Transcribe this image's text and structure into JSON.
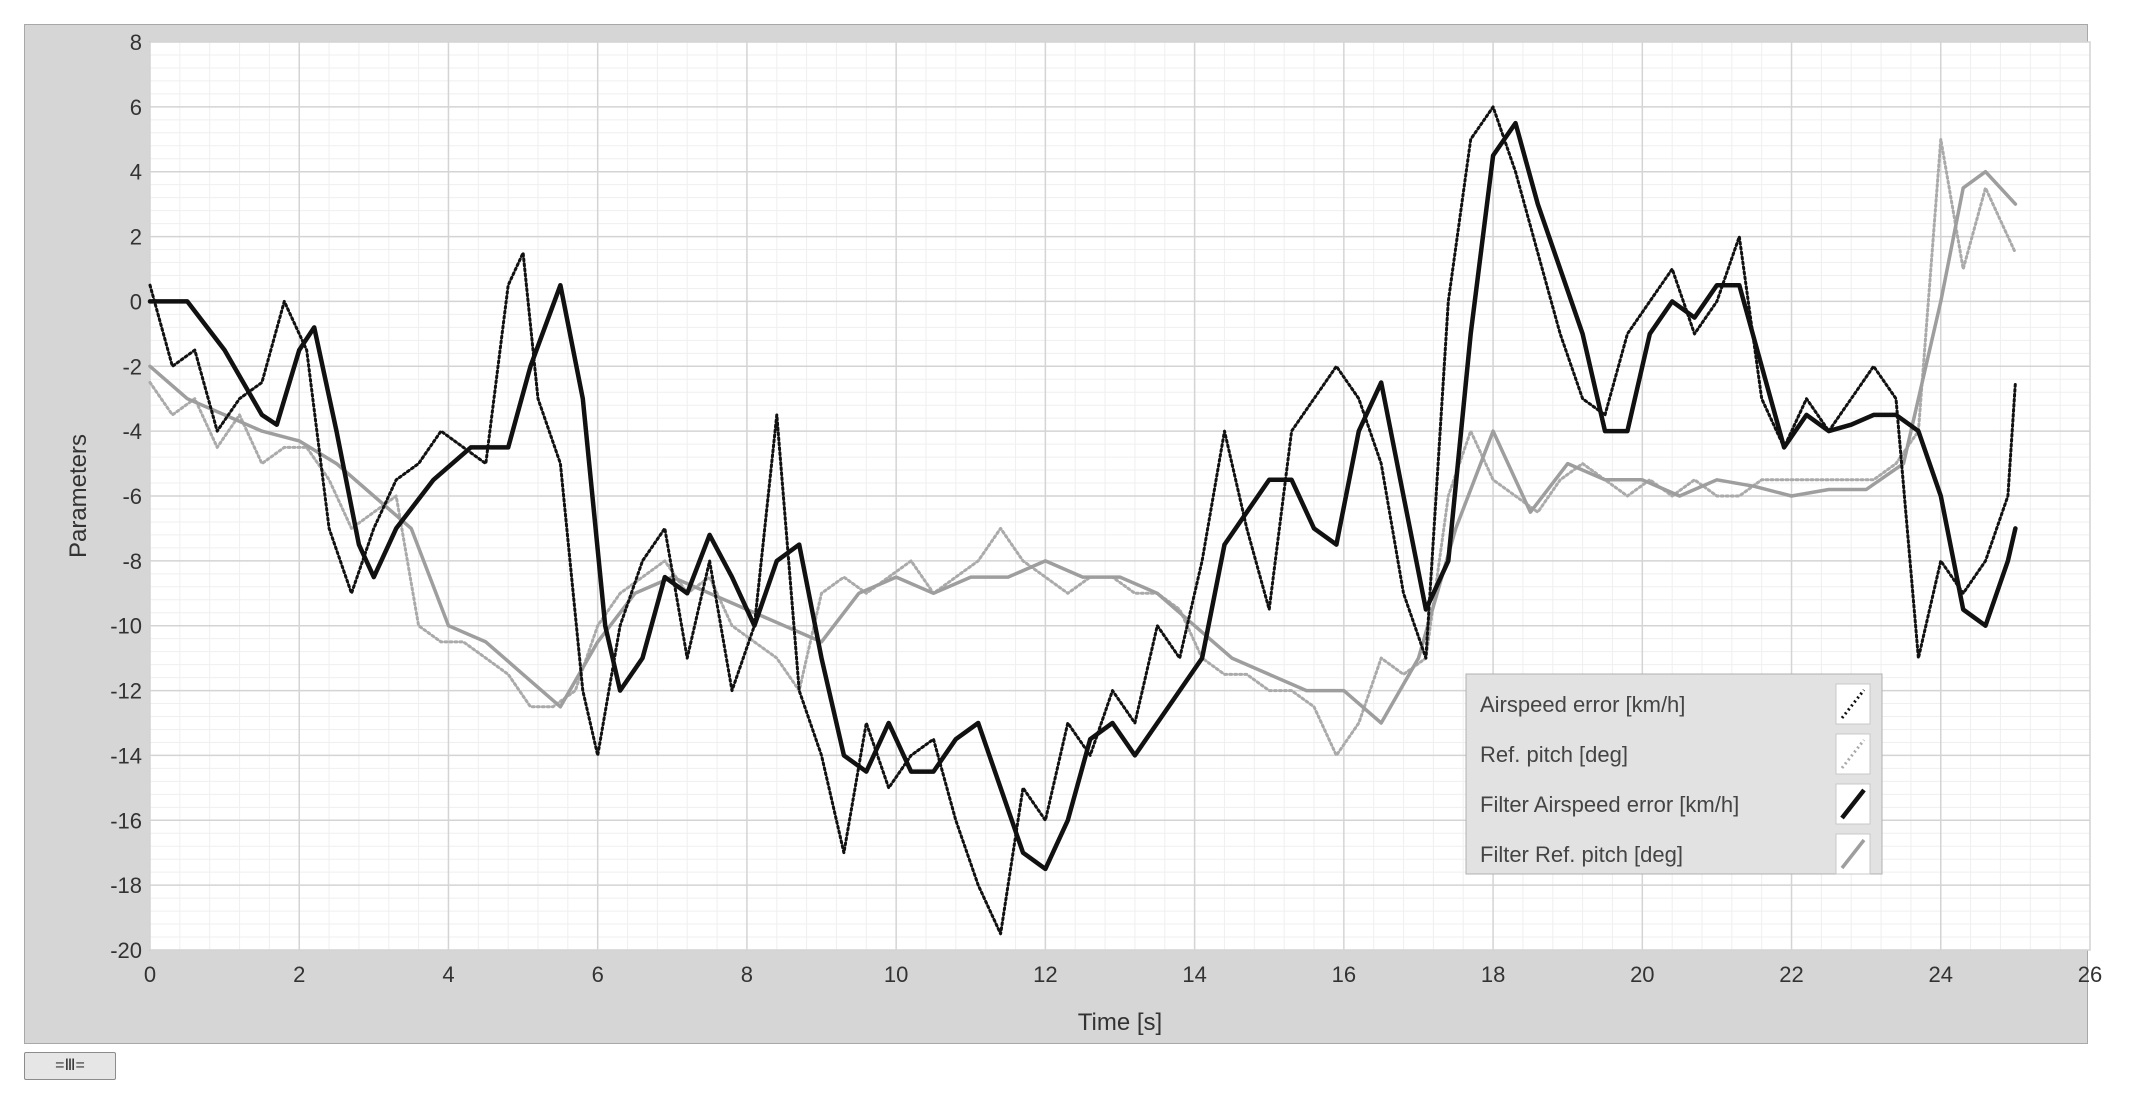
{
  "chart_data": {
    "type": "line",
    "xlabel": "Time [s]",
    "ylabel": "Parameters",
    "xlim": [
      0,
      26
    ],
    "ylim": [
      -20,
      8
    ],
    "xticks": [
      0,
      2,
      4,
      6,
      8,
      10,
      12,
      14,
      16,
      18,
      20,
      22,
      24,
      26
    ],
    "yticks": [
      8,
      6,
      4,
      2,
      0,
      -2,
      -4,
      -6,
      -8,
      -10,
      -12,
      -14,
      -16,
      -18,
      -20
    ],
    "grid": true,
    "legend": "bottom-right",
    "series": [
      {
        "name": "Airspeed error [km/h]",
        "style": "dotted",
        "color": "#111111",
        "x": [
          0,
          0.3,
          0.6,
          0.9,
          1.2,
          1.5,
          1.8,
          2.1,
          2.4,
          2.7,
          3.0,
          3.3,
          3.6,
          3.9,
          4.2,
          4.5,
          4.8,
          5.0,
          5.2,
          5.5,
          5.8,
          6.0,
          6.3,
          6.6,
          6.9,
          7.2,
          7.5,
          7.8,
          8.1,
          8.4,
          8.7,
          9.0,
          9.3,
          9.6,
          9.9,
          10.2,
          10.5,
          10.8,
          11.1,
          11.4,
          11.7,
          12.0,
          12.3,
          12.6,
          12.9,
          13.2,
          13.5,
          13.8,
          14.1,
          14.4,
          14.7,
          15.0,
          15.3,
          15.6,
          15.9,
          16.2,
          16.5,
          16.8,
          17.1,
          17.4,
          17.7,
          18.0,
          18.3,
          18.6,
          18.9,
          19.2,
          19.5,
          19.8,
          20.1,
          20.4,
          20.7,
          21.0,
          21.3,
          21.6,
          21.9,
          22.2,
          22.5,
          22.8,
          23.1,
          23.4,
          23.7,
          24.0,
          24.3,
          24.6,
          24.9,
          25.0
        ],
        "y": [
          0.5,
          -2,
          -1.5,
          -4,
          -3,
          -2.5,
          0,
          -1.5,
          -7,
          -9,
          -7,
          -5.5,
          -5,
          -4,
          -4.5,
          -5,
          0.5,
          1.5,
          -3,
          -5,
          -12,
          -14,
          -10,
          -8,
          -7,
          -11,
          -8,
          -12,
          -10,
          -3.5,
          -12,
          -14,
          -17,
          -13,
          -15,
          -14,
          -13.5,
          -16,
          -18,
          -19.5,
          -15,
          -16,
          -13,
          -14,
          -12,
          -13,
          -10,
          -11,
          -8,
          -4,
          -7,
          -9.5,
          -4,
          -3,
          -2,
          -3,
          -5,
          -9,
          -11,
          0,
          5,
          6,
          4,
          1.5,
          -1,
          -3,
          -3.5,
          -1,
          0,
          1,
          -1,
          0,
          2,
          -3,
          -4.5,
          -3,
          -4,
          -3,
          -2,
          -3,
          -11,
          -8,
          -9,
          -8,
          -6,
          -2.5
        ]
      },
      {
        "name": "Ref. pitch [deg]",
        "style": "dotted",
        "color": "#aaaaaa",
        "x": [
          0,
          0.3,
          0.6,
          0.9,
          1.2,
          1.5,
          1.8,
          2.1,
          2.4,
          2.7,
          3.0,
          3.3,
          3.6,
          3.9,
          4.2,
          4.5,
          4.8,
          5.1,
          5.4,
          5.7,
          6.0,
          6.3,
          6.6,
          6.9,
          7.2,
          7.5,
          7.8,
          8.1,
          8.4,
          8.7,
          9.0,
          9.3,
          9.6,
          9.9,
          10.2,
          10.5,
          10.8,
          11.1,
          11.4,
          11.7,
          12.0,
          12.3,
          12.6,
          12.9,
          13.2,
          13.5,
          13.8,
          14.1,
          14.4,
          14.7,
          15.0,
          15.3,
          15.6,
          15.9,
          16.2,
          16.5,
          16.8,
          17.1,
          17.4,
          17.7,
          18.0,
          18.3,
          18.6,
          18.9,
          19.2,
          19.5,
          19.8,
          20.1,
          20.4,
          20.7,
          21.0,
          21.3,
          21.6,
          21.9,
          22.2,
          22.5,
          22.8,
          23.1,
          23.4,
          23.7,
          24.0,
          24.3,
          24.6,
          24.9,
          25.0
        ],
        "y": [
          -2.5,
          -3.5,
          -3,
          -4.5,
          -3.5,
          -5,
          -4.5,
          -4.5,
          -5.5,
          -7,
          -6.5,
          -6,
          -10,
          -10.5,
          -10.5,
          -11,
          -11.5,
          -12.5,
          -12.5,
          -12,
          -10,
          -9,
          -8.5,
          -8,
          -9,
          -8.5,
          -10,
          -10.5,
          -11,
          -12,
          -9,
          -8.5,
          -9,
          -8.5,
          -8,
          -9,
          -8.5,
          -8,
          -7,
          -8,
          -8.5,
          -9,
          -8.5,
          -8.5,
          -9,
          -9,
          -9.5,
          -11,
          -11.5,
          -11.5,
          -12,
          -12,
          -12.5,
          -14,
          -13,
          -11,
          -11.5,
          -11,
          -6,
          -4,
          -5.5,
          -6,
          -6.5,
          -5.5,
          -5,
          -5.5,
          -6,
          -5.5,
          -6,
          -5.5,
          -6,
          -6,
          -5.5,
          -5.5,
          -5.5,
          -5.5,
          -5.5,
          -5.5,
          -5,
          -4,
          5,
          1,
          3.5,
          2,
          1.5
        ]
      },
      {
        "name": "Filter Airspeed error [km/h]",
        "style": "solid-thick",
        "color": "#111111",
        "x": [
          0,
          0.5,
          1.0,
          1.5,
          1.7,
          2.0,
          2.2,
          2.5,
          2.8,
          3.0,
          3.3,
          3.8,
          4.3,
          4.8,
          5.1,
          5.5,
          5.8,
          6.1,
          6.3,
          6.6,
          6.9,
          7.2,
          7.5,
          7.8,
          8.1,
          8.4,
          8.7,
          9.0,
          9.3,
          9.6,
          9.9,
          10.2,
          10.5,
          10.8,
          11.1,
          11.4,
          11.7,
          12.0,
          12.3,
          12.6,
          12.9,
          13.2,
          13.5,
          13.8,
          14.1,
          14.4,
          14.7,
          15.0,
          15.3,
          15.6,
          15.9,
          16.2,
          16.5,
          16.8,
          17.1,
          17.4,
          17.7,
          18.0,
          18.3,
          18.6,
          18.9,
          19.2,
          19.5,
          19.8,
          20.1,
          20.4,
          20.7,
          21.0,
          21.3,
          21.6,
          21.9,
          22.2,
          22.5,
          22.8,
          23.1,
          23.4,
          23.7,
          24.0,
          24.3,
          24.6,
          24.9,
          25.0
        ],
        "y": [
          0,
          0,
          -1.5,
          -3.5,
          -3.8,
          -1.5,
          -0.8,
          -4,
          -7.5,
          -8.5,
          -7,
          -5.5,
          -4.5,
          -4.5,
          -2,
          0.5,
          -3,
          -10,
          -12,
          -11,
          -8.5,
          -9,
          -7.2,
          -8.5,
          -10,
          -8,
          -7.5,
          -11,
          -14,
          -14.5,
          -13,
          -14.5,
          -14.5,
          -13.5,
          -13,
          -15,
          -17,
          -17.5,
          -16,
          -13.5,
          -13,
          -14,
          -13,
          -12,
          -11,
          -7.5,
          -6.5,
          -5.5,
          -5.5,
          -7,
          -7.5,
          -4,
          -2.5,
          -6,
          -9.5,
          -8,
          -1,
          4.5,
          5.5,
          3,
          1,
          -1,
          -4,
          -4,
          -1,
          0,
          -0.5,
          0.5,
          0.5,
          -2,
          -4.5,
          -3.5,
          -4,
          -3.8,
          -3.5,
          -3.5,
          -4,
          -6,
          -9.5,
          -10,
          -8,
          -7
        ]
      },
      {
        "name": "Filter Ref. pitch [deg]",
        "style": "solid",
        "color": "#9e9e9e",
        "x": [
          0,
          0.5,
          1.0,
          1.5,
          2.0,
          2.5,
          3.0,
          3.5,
          4.0,
          4.5,
          5.0,
          5.5,
          6.0,
          6.5,
          7.0,
          7.5,
          8.0,
          8.5,
          9.0,
          9.5,
          10.0,
          10.5,
          11.0,
          11.5,
          12.0,
          12.5,
          13.0,
          13.5,
          14.0,
          14.5,
          15.0,
          15.5,
          16.0,
          16.5,
          17.0,
          17.5,
          18.0,
          18.5,
          19.0,
          19.5,
          20.0,
          20.5,
          21.0,
          21.5,
          22.0,
          22.5,
          23.0,
          23.5,
          24.0,
          24.3,
          24.6,
          25.0
        ],
        "y": [
          -2,
          -3,
          -3.5,
          -4,
          -4.3,
          -5,
          -6,
          -7,
          -10,
          -10.5,
          -11.5,
          -12.5,
          -10.5,
          -9,
          -8.5,
          -9,
          -9.5,
          -10,
          -10.5,
          -9,
          -8.5,
          -9,
          -8.5,
          -8.5,
          -8,
          -8.5,
          -8.5,
          -9,
          -10,
          -11,
          -11.5,
          -12,
          -12,
          -13,
          -11,
          -7,
          -4,
          -6.5,
          -5,
          -5.5,
          -5.5,
          -6,
          -5.5,
          -5.7,
          -6,
          -5.8,
          -5.8,
          -5,
          0,
          3.5,
          4,
          3
        ]
      }
    ]
  },
  "ui": {
    "scale_button_label": "=Ⅲ="
  }
}
